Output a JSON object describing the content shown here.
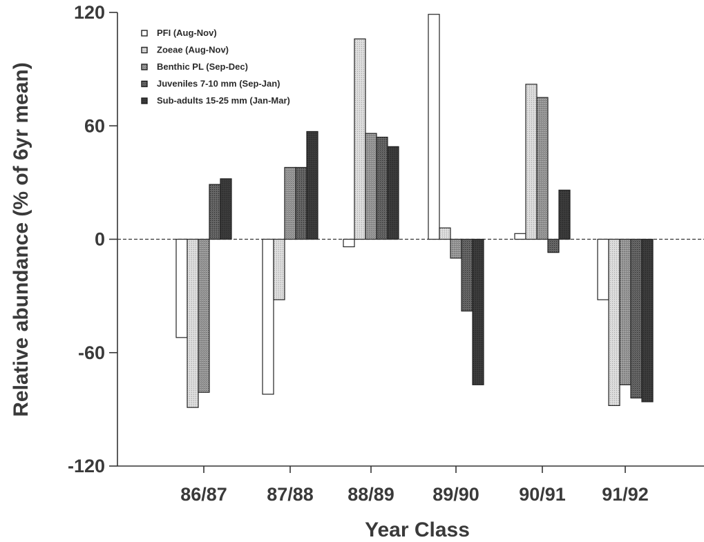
{
  "chart_data": {
    "type": "bar",
    "xlabel": "Year Class",
    "ylabel": "Relative abundance (% of 6yr mean)",
    "categories": [
      "86/87",
      "87/88",
      "88/89",
      "89/90",
      "90/91",
      "91/92"
    ],
    "ylim": [
      -120,
      120
    ],
    "yticks": [
      120,
      60,
      0,
      -60,
      -120
    ],
    "zero_line": "dashed",
    "grid": false,
    "legend_position": "top-left",
    "series": [
      {
        "name": "PFI (Aug-Nov)",
        "color": "#ffffff",
        "values": [
          -52,
          -82,
          -4,
          119,
          3,
          -32
        ]
      },
      {
        "name": "Zoeae (Aug-Nov)",
        "color": "#d4d4d4",
        "values": [
          -89,
          -32,
          106,
          6,
          82,
          -88
        ]
      },
      {
        "name": "Benthic PL (Sep-Dec)",
        "color": "#8e8e8e",
        "values": [
          -81,
          38,
          56,
          -10,
          75,
          -77
        ]
      },
      {
        "name": "Juveniles 7-10 mm (Sep-Jan)",
        "color": "#5c5c5c",
        "values": [
          29,
          38,
          54,
          -38,
          -7,
          -84
        ]
      },
      {
        "name": "Sub-adults 15-25 mm (Jan-Mar)",
        "color": "#333333",
        "values": [
          32,
          57,
          49,
          -77,
          26,
          -86
        ]
      }
    ]
  }
}
